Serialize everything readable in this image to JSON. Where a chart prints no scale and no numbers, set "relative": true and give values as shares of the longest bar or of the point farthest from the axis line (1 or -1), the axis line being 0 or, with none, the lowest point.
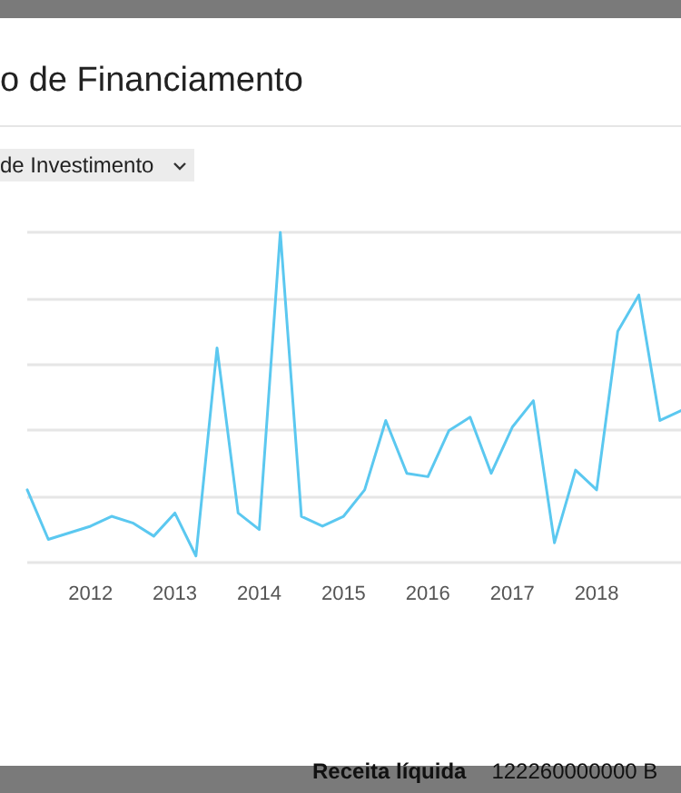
{
  "chart_data": {
    "type": "line",
    "title": "o de Financiamento",
    "annotations": [
      "de Investimento",
      "Receita líquida",
      "122260000000 B"
    ],
    "x": [
      2011.25,
      2011.5,
      2011.75,
      2012,
      2012.25,
      2012.5,
      2012.75,
      2013,
      2013.25,
      2013.5,
      2013.75,
      2014,
      2014.25,
      2014.5,
      2014.75,
      2015,
      2015.25,
      2015.5,
      2015.75,
      2016,
      2016.25,
      2016.5,
      2016.75,
      2017,
      2017.25,
      2017.5,
      2017.75,
      2018,
      2018.25,
      2018.5,
      2018.75,
      2019
    ],
    "series": [
      {
        "color": "#5bc8f0",
        "values": [
          0.22,
          0.07,
          0.09,
          0.11,
          0.14,
          0.12,
          0.08,
          0.15,
          0.02,
          0.65,
          0.15,
          0.1,
          1,
          0.14,
          0.11,
          0.14,
          0.22,
          0.43,
          0.27,
          0.26,
          0.4,
          0.44,
          0.27,
          0.41,
          0.49,
          0.06,
          0.28,
          0.22,
          0.7,
          0.81,
          0.43,
          0.46
        ]
      }
    ],
    "relative": true,
    "xlim": [
      2011.25,
      2019
    ],
    "xticks": [
      2012,
      2013,
      2014,
      2015,
      2016,
      2017,
      2018
    ],
    "grid": "y",
    "marker": "none",
    "line_style": "solid"
  }
}
